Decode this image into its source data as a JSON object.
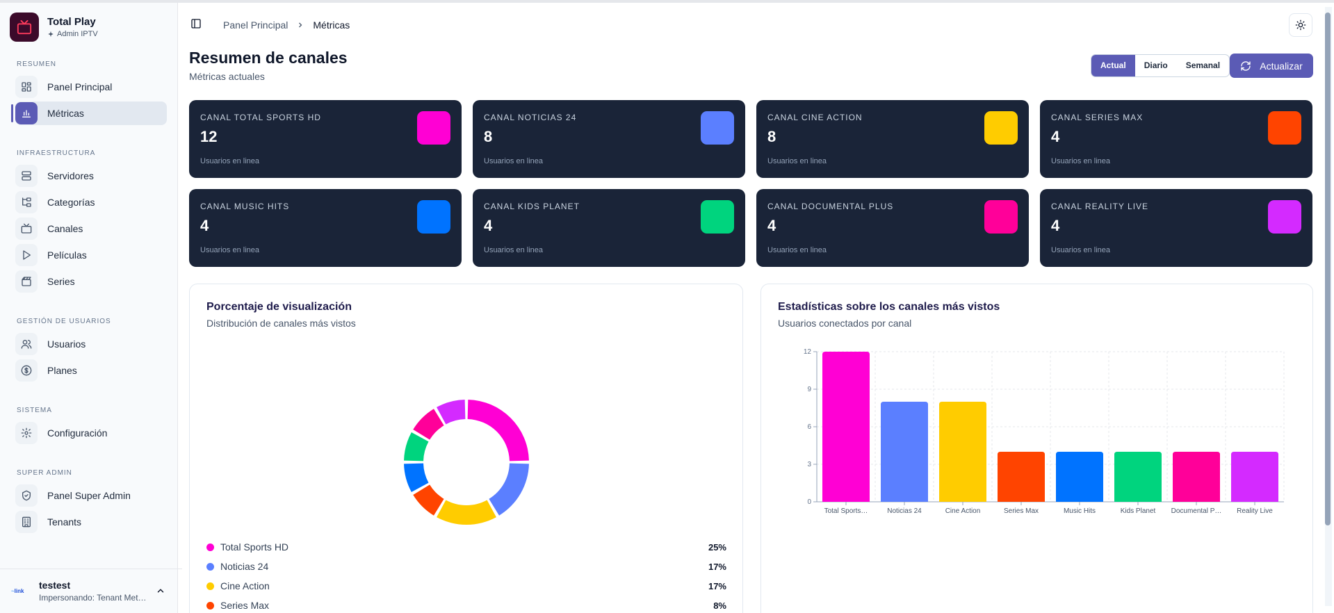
{
  "brand": {
    "title": "Total Play",
    "subtitle": "Admin IPTV"
  },
  "sidebar": {
    "sections": [
      {
        "label": "RESUMEN",
        "items": [
          {
            "label": "Panel Principal",
            "icon": "dashboard-icon",
            "active": false
          },
          {
            "label": "Métricas",
            "icon": "bar-chart-icon",
            "active": true
          }
        ]
      },
      {
        "label": "INFRAESTRUCTURA",
        "items": [
          {
            "label": "Servidores",
            "icon": "server-icon",
            "active": false
          },
          {
            "label": "Categorías",
            "icon": "folder-tree-icon",
            "active": false
          },
          {
            "label": "Canales",
            "icon": "tv-icon",
            "active": false
          },
          {
            "label": "Películas",
            "icon": "play-icon",
            "active": false
          },
          {
            "label": "Series",
            "icon": "clapperboard-icon",
            "active": false
          }
        ]
      },
      {
        "label": "GESTIÓN DE USUARIOS",
        "items": [
          {
            "label": "Usuarios",
            "icon": "users-icon",
            "active": false
          },
          {
            "label": "Planes",
            "icon": "dollar-icon",
            "active": false
          }
        ]
      },
      {
        "label": "SISTEMA",
        "items": [
          {
            "label": "Configuración",
            "icon": "gear-icon",
            "active": false
          }
        ]
      },
      {
        "label": "SUPER ADMIN",
        "items": [
          {
            "label": "Panel Super Admin",
            "icon": "shield-icon",
            "active": false
          },
          {
            "label": "Tenants",
            "icon": "building-icon",
            "active": false
          }
        ]
      }
    ]
  },
  "user": {
    "name": "testest",
    "subtitle": "Impersonando: Tenant Met…",
    "logo_text": "link"
  },
  "header": {
    "breadcrumb_root": "Panel Principal",
    "breadcrumb_current": "Métricas"
  },
  "page": {
    "title": "Resumen de canales",
    "subtitle": "Métricas actuales"
  },
  "toolbar": {
    "segments": [
      {
        "label": "Actual",
        "active": true
      },
      {
        "label": "Diario",
        "active": false
      },
      {
        "label": "Semanal",
        "active": false
      }
    ],
    "refresh_label": "Actualizar"
  },
  "cards": [
    {
      "title": "CANAL TOTAL SPORTS HD",
      "value": "12",
      "sub": "Usuarios en linea",
      "color": "#ff00d4"
    },
    {
      "title": "CANAL NOTICIAS 24",
      "value": "8",
      "sub": "Usuarios en linea",
      "color": "#5b7fff"
    },
    {
      "title": "CANAL CINE ACTION",
      "value": "8",
      "sub": "Usuarios en linea",
      "color": "#ffcc00"
    },
    {
      "title": "CANAL SERIES MAX",
      "value": "4",
      "sub": "Usuarios en linea",
      "color": "#ff4400"
    },
    {
      "title": "CANAL MUSIC HITS",
      "value": "4",
      "sub": "Usuarios en linea",
      "color": "#0073ff"
    },
    {
      "title": "CANAL KIDS PLANET",
      "value": "4",
      "sub": "Usuarios en linea",
      "color": "#00d47e"
    },
    {
      "title": "CANAL DOCUMENTAL PLUS",
      "value": "4",
      "sub": "Usuarios en linea",
      "color": "#ff0099"
    },
    {
      "title": "CANAL REALITY LIVE",
      "value": "4",
      "sub": "Usuarios en linea",
      "color": "#d42aff"
    }
  ],
  "donut_panel": {
    "title": "Porcentaje de visualización",
    "subtitle": "Distribución de canales más vistos",
    "legend": [
      {
        "label": "Total Sports HD",
        "pct": "25%",
        "color": "#ff00d4"
      },
      {
        "label": "Noticias 24",
        "pct": "17%",
        "color": "#5b7fff"
      },
      {
        "label": "Cine Action",
        "pct": "17%",
        "color": "#ffcc00"
      },
      {
        "label": "Series Max",
        "pct": "8%",
        "color": "#ff4400"
      }
    ]
  },
  "bar_panel": {
    "title": "Estadísticas sobre los canales más vistos",
    "subtitle": "Usuarios conectados por canal"
  },
  "chart_data": [
    {
      "type": "pie",
      "categories": [
        "Total Sports HD",
        "Noticias 24",
        "Cine Action",
        "Series Max",
        "Music Hits",
        "Kids Planet",
        "Documental Plus",
        "Reality Live"
      ],
      "values": [
        12,
        8,
        8,
        4,
        4,
        4,
        4,
        4
      ],
      "colors": [
        "#ff00d4",
        "#5b7fff",
        "#ffcc00",
        "#ff4400",
        "#0073ff",
        "#00d47e",
        "#ff0099",
        "#d42aff"
      ],
      "title": "Porcentaje de visualización",
      "donut": true
    },
    {
      "type": "bar",
      "categories": [
        "Total Sports…",
        "Noticias 24",
        "Cine Action",
        "Series Max",
        "Music Hits",
        "Kids Planet",
        "Documental P…",
        "Reality Live"
      ],
      "values": [
        12,
        8,
        8,
        4,
        4,
        4,
        4,
        4
      ],
      "colors": [
        "#ff00d4",
        "#5b7fff",
        "#ffcc00",
        "#ff4400",
        "#0073ff",
        "#00d47e",
        "#ff0099",
        "#d42aff"
      ],
      "title": "Estadísticas sobre los canales más vistos",
      "xlabel": "",
      "ylabel": "",
      "ylim": [
        0,
        12
      ],
      "yticks": [
        "0",
        "3",
        "6",
        "9",
        "12"
      ],
      "grid": true
    }
  ]
}
